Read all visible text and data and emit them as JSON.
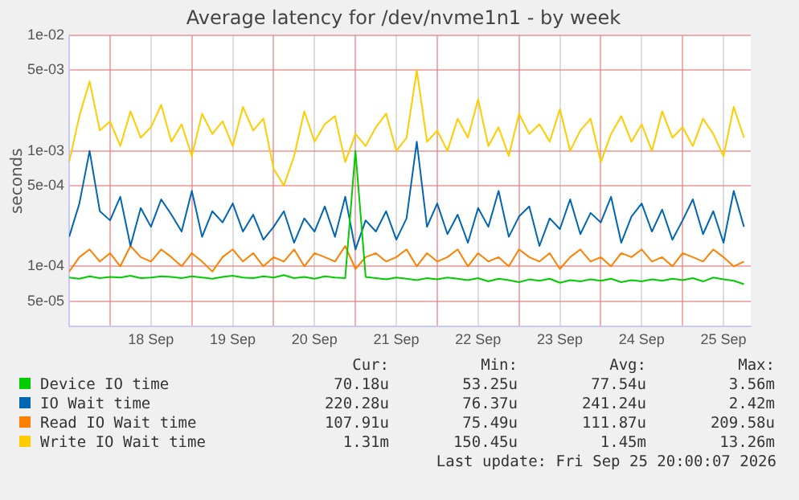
{
  "chart_data": {
    "type": "line",
    "title": "Average latency for /dev/nvme1n1 - by week",
    "ylabel": "seconds",
    "x": [
      "2026-09-17T12:00",
      "2026-09-17T15:00",
      "2026-09-17T18:00",
      "2026-09-17T21:00",
      "2026-09-18T00:00",
      "2026-09-18T03:00",
      "2026-09-18T06:00",
      "2026-09-18T09:00",
      "2026-09-18T12:00",
      "2026-09-18T15:00",
      "2026-09-18T18:00",
      "2026-09-18T21:00",
      "2026-09-19T00:00",
      "2026-09-19T03:00",
      "2026-09-19T06:00",
      "2026-09-19T09:00",
      "2026-09-19T12:00",
      "2026-09-19T15:00",
      "2026-09-19T18:00",
      "2026-09-19T21:00",
      "2026-09-20T00:00",
      "2026-09-20T03:00",
      "2026-09-20T06:00",
      "2026-09-20T09:00",
      "2026-09-20T12:00",
      "2026-09-20T15:00",
      "2026-09-20T18:00",
      "2026-09-20T21:00",
      "2026-09-21T00:00",
      "2026-09-21T03:00",
      "2026-09-21T06:00",
      "2026-09-21T09:00",
      "2026-09-21T12:00",
      "2026-09-21T15:00",
      "2026-09-21T18:00",
      "2026-09-21T21:00",
      "2026-09-22T00:00",
      "2026-09-22T03:00",
      "2026-09-22T06:00",
      "2026-09-22T09:00",
      "2026-09-22T12:00",
      "2026-09-22T15:00",
      "2026-09-22T18:00",
      "2026-09-22T21:00",
      "2026-09-23T00:00",
      "2026-09-23T03:00",
      "2026-09-23T06:00",
      "2026-09-23T09:00",
      "2026-09-23T12:00",
      "2026-09-23T15:00",
      "2026-09-23T18:00",
      "2026-09-23T21:00",
      "2026-09-24T00:00",
      "2026-09-24T03:00",
      "2026-09-24T06:00",
      "2026-09-24T09:00",
      "2026-09-24T12:00",
      "2026-09-24T15:00",
      "2026-09-24T18:00",
      "2026-09-24T21:00",
      "2026-09-25T00:00",
      "2026-09-25T03:00",
      "2026-09-25T06:00",
      "2026-09-25T09:00",
      "2026-09-25T12:00",
      "2026-09-25T15:00",
      "2026-09-25T18:00"
    ],
    "series": [
      {
        "name": "Device IO time",
        "color": "#00cc00",
        "values": [
          8e-05,
          7.8e-05,
          8.2e-05,
          7.9e-05,
          8.1e-05,
          8e-05,
          8.3e-05,
          7.9e-05,
          8e-05,
          8.2e-05,
          8.1e-05,
          7.9e-05,
          8.2e-05,
          8e-05,
          7.8e-05,
          8.1e-05,
          8.3e-05,
          8e-05,
          7.9e-05,
          8.2e-05,
          8e-05,
          8.4e-05,
          7.9e-05,
          8.1e-05,
          7.8e-05,
          8.2e-05,
          8e-05,
          7.9e-05,
          0.001,
          8.1e-05,
          7.9e-05,
          7.7e-05,
          8e-05,
          7.8e-05,
          7.6e-05,
          7.9e-05,
          7.7e-05,
          8e-05,
          7.8e-05,
          7.6e-05,
          7.9e-05,
          7.4e-05,
          7.8e-05,
          7.6e-05,
          7.3e-05,
          7.7e-05,
          7.5e-05,
          7.8e-05,
          7.2e-05,
          7.6e-05,
          7.4e-05,
          7.7e-05,
          7.5e-05,
          7.8e-05,
          7.3e-05,
          7.6e-05,
          7.4e-05,
          7.7e-05,
          7.5e-05,
          7.8e-05,
          7.6e-05,
          7.9e-05,
          7.4e-05,
          8e-05,
          7.7e-05,
          7.5e-05,
          7e-05
        ]
      },
      {
        "name": "IO Wait time",
        "color": "#0066b3",
        "values": [
          0.00018,
          0.00035,
          0.001,
          0.0003,
          0.00025,
          0.0004,
          0.00015,
          0.00032,
          0.00022,
          0.00038,
          0.00028,
          0.0002,
          0.00045,
          0.00018,
          0.0003,
          0.00024,
          0.00035,
          0.0002,
          0.00028,
          0.00017,
          0.00022,
          0.0003,
          0.00016,
          0.00026,
          0.0002,
          0.00033,
          0.00018,
          0.0004,
          0.00014,
          0.00025,
          0.0002,
          0.0003,
          0.00017,
          0.00026,
          0.0012,
          0.00022,
          0.00035,
          0.00019,
          0.00028,
          0.00016,
          0.00032,
          0.00022,
          0.00045,
          0.00018,
          0.00027,
          0.00033,
          0.00015,
          0.00026,
          0.00021,
          0.00038,
          0.00019,
          0.00029,
          0.00024,
          0.0004,
          0.00016,
          0.00027,
          0.00035,
          0.0002,
          0.00031,
          0.00017,
          0.00025,
          0.00038,
          0.00019,
          0.0003,
          0.00016,
          0.00045,
          0.00022
        ]
      },
      {
        "name": "Read IO Wait time",
        "color": "#ff8000",
        "values": [
          9e-05,
          0.00012,
          0.00014,
          0.00011,
          0.00013,
          0.0001,
          0.00015,
          0.00012,
          0.00011,
          0.00014,
          0.00012,
          0.0001,
          0.00013,
          0.00011,
          9e-05,
          0.00012,
          0.00014,
          0.00011,
          0.00013,
          0.0001,
          0.00012,
          0.00011,
          0.00014,
          0.0001,
          0.00013,
          0.00012,
          0.00011,
          0.00015,
          9.5e-05,
          0.00012,
          0.00013,
          0.00011,
          0.00012,
          0.00014,
          0.0001,
          0.00013,
          0.00011,
          0.00012,
          0.00014,
          0.0001,
          0.00013,
          0.00011,
          0.00012,
          0.0001,
          0.00014,
          0.00012,
          0.00011,
          0.00013,
          9.5e-05,
          0.00012,
          0.00014,
          0.00011,
          0.00012,
          0.0001,
          0.00013,
          0.00012,
          0.00014,
          0.00011,
          0.00012,
          0.0001,
          0.00013,
          0.00012,
          0.00011,
          0.00014,
          0.00012,
          0.0001,
          0.00011
        ]
      },
      {
        "name": "Write IO Wait time",
        "color": "#ffcc00",
        "values": [
          0.0008,
          0.002,
          0.004,
          0.0015,
          0.0018,
          0.0011,
          0.0022,
          0.0013,
          0.0016,
          0.0025,
          0.0012,
          0.0017,
          0.0009,
          0.0021,
          0.0014,
          0.0018,
          0.0011,
          0.0024,
          0.0015,
          0.0019,
          0.0007,
          0.0005,
          0.0009,
          0.0022,
          0.0012,
          0.0017,
          0.002,
          0.0008,
          0.0014,
          0.0011,
          0.0016,
          0.0021,
          0.001,
          0.0013,
          0.005,
          0.0012,
          0.0015,
          0.001,
          0.0019,
          0.0013,
          0.0028,
          0.0011,
          0.0016,
          0.0009,
          0.0021,
          0.0014,
          0.0017,
          0.0012,
          0.0023,
          0.001,
          0.0015,
          0.0019,
          0.0008,
          0.0014,
          0.002,
          0.0012,
          0.0017,
          0.001,
          0.0022,
          0.0013,
          0.0016,
          0.0011,
          0.0019,
          0.0014,
          0.0009,
          0.0024,
          0.0013
        ]
      }
    ],
    "xlim": [
      "2026-09-17T12:00",
      "2026-09-25T20:00"
    ],
    "xticks": [
      {
        "value": "2026-09-18T00:00",
        "label": null
      },
      {
        "value": "2026-09-18T12:00",
        "label": "18 Sep"
      },
      {
        "value": "2026-09-19T00:00",
        "label": null
      },
      {
        "value": "2026-09-19T12:00",
        "label": "19 Sep"
      },
      {
        "value": "2026-09-20T00:00",
        "label": null
      },
      {
        "value": "2026-09-20T12:00",
        "label": "20 Sep"
      },
      {
        "value": "2026-09-21T00:00",
        "label": null
      },
      {
        "value": "2026-09-21T12:00",
        "label": "21 Sep"
      },
      {
        "value": "2026-09-22T00:00",
        "label": null
      },
      {
        "value": "2026-09-22T12:00",
        "label": "22 Sep"
      },
      {
        "value": "2026-09-23T00:00",
        "label": null
      },
      {
        "value": "2026-09-23T12:00",
        "label": "23 Sep"
      },
      {
        "value": "2026-09-24T00:00",
        "label": null
      },
      {
        "value": "2026-09-24T12:00",
        "label": "24 Sep"
      },
      {
        "value": "2026-09-25T00:00",
        "label": null
      },
      {
        "value": "2026-09-25T12:00",
        "label": "25 Sep"
      }
    ],
    "ylim": [
      3e-05,
      0.01
    ],
    "yticks": [
      {
        "value": 5e-05,
        "label": "5e-05"
      },
      {
        "value": 0.0001,
        "label": "1e-04"
      },
      {
        "value": 0.0005,
        "label": "5e-04"
      },
      {
        "value": 0.001,
        "label": "1e-03"
      },
      {
        "value": 0.005,
        "label": "5e-03"
      },
      {
        "value": 0.01,
        "label": "1e-02"
      }
    ],
    "log": "y",
    "grid": true,
    "legend": "bottom",
    "annotations": [
      "Cur:",
      "Min:",
      "Avg:",
      "Max:",
      "70.18u",
      "53.25u",
      "77.54u",
      "3.56m",
      "220.28u",
      "76.37u",
      "241.24u",
      "2.42m",
      "107.91u",
      "75.49u",
      "111.87u",
      "209.58u",
      "1.31m",
      "150.45u",
      "1.45m",
      "13.26m",
      "Last update: Fri Sep 25 20:00:07 2026"
    ]
  }
}
